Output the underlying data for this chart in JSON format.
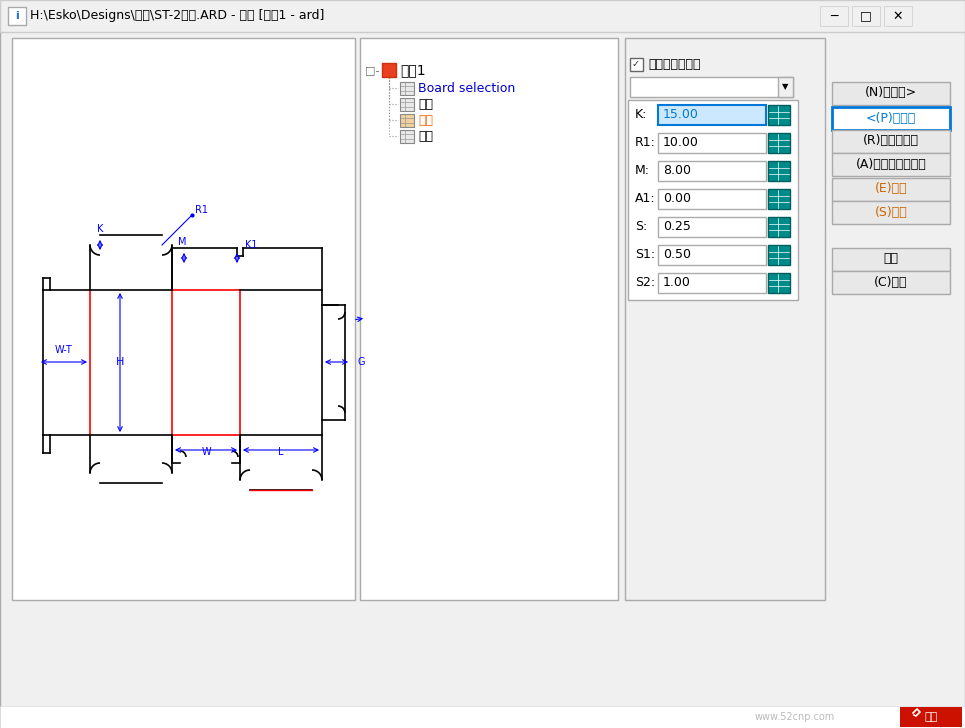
{
  "title_bar": "H:\\Esko\\Designs\\双插\\ST-2双插.ARD - 插舌 [设计1 - ard]",
  "bg_color": "#f0f0f0",
  "tree_items": [
    "设计1",
    "Board selection",
    "主体",
    "插舌",
    "耳朵"
  ],
  "tree_highlight": 2,
  "param_labels": [
    "K:",
    "R1:",
    "M:",
    "A1:",
    "S:",
    "S1:",
    "S2:"
  ],
  "param_values": [
    "15.00",
    "10.00",
    "8.00",
    "0.00",
    "0.25",
    "0.50",
    "1.00"
  ],
  "param_highlight": 0,
  "buttons_right": [
    "(N)下一个>",
    "<(P)先前的",
    "(R)重新初始化",
    "(A)全部重新初始化",
    "(E)编辑",
    "(S)复位",
    "确定",
    "(C)取消"
  ],
  "button_highlight": 1,
  "checkbox_label": "自动初始化变量",
  "teal_color": "#008b8b",
  "highlight_blue": "#0078d7",
  "highlight_input": "#cce8ff",
  "red_line": "#ff0000",
  "black_line": "#000000",
  "blue_annot": "#0000ff"
}
